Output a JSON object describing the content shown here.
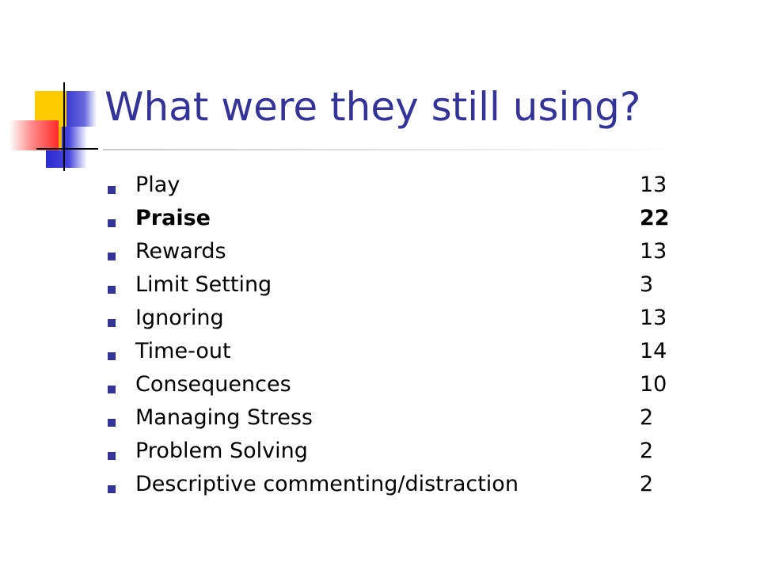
{
  "slide": {
    "title": "What were they still using?",
    "items": [
      {
        "label": "Play",
        "value": "13",
        "bold": false
      },
      {
        "label": "Praise",
        "value": "22",
        "bold": true
      },
      {
        "label": "Rewards",
        "value": "13",
        "bold": false
      },
      {
        "label": "Limit Setting",
        "value": "3",
        "bold": false
      },
      {
        "label": "Ignoring",
        "value": "13",
        "bold": false
      },
      {
        "label": "Time-out",
        "value": "14",
        "bold": false
      },
      {
        "label": "Consequences",
        "value": "10",
        "bold": false
      },
      {
        "label": "Managing Stress",
        "value": "2",
        "bold": false
      },
      {
        "label": "Problem Solving",
        "value": "2",
        "bold": false
      },
      {
        "label": "Descriptive commenting/distraction",
        "value": "2",
        "bold": false
      }
    ]
  },
  "colors": {
    "title": "#333399",
    "bullet": "#333399",
    "text": "#000000",
    "logo_yellow": "#ffcc00",
    "logo_red": "#ff2a2a",
    "logo_blue": "#3a3ad0"
  }
}
